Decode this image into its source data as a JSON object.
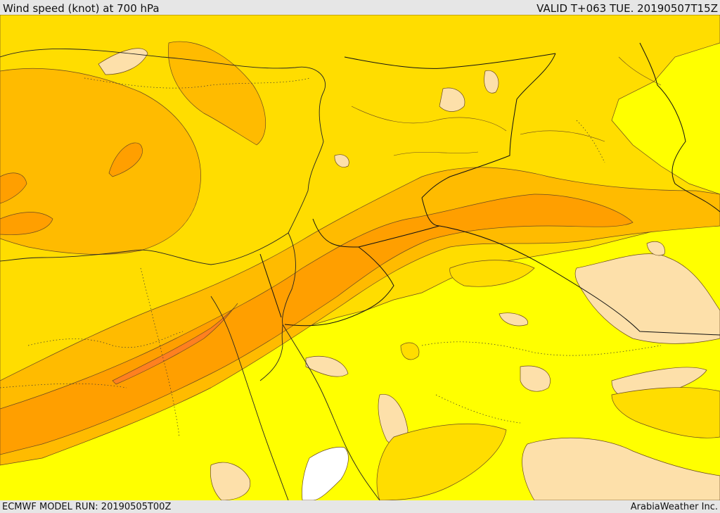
{
  "header": {
    "title": "Wind speed (knot) at 700 hPa",
    "valid": "VALID T+063 TUE. 20190507T15Z"
  },
  "footer": {
    "model_run": "ECMWF MODEL RUN: 20190505T00Z",
    "credit": "ArabiaWeather Inc."
  },
  "map": {
    "colors": {
      "lowest": "#fde0aa",
      "low": "#ffff00",
      "mid": "#ffdd00",
      "high": "#ffbb00",
      "higher": "#ff9f00",
      "highest": "#ff8020",
      "no_data": "#ffffff",
      "contour": "#6a4a20",
      "border": "#111111"
    }
  }
}
